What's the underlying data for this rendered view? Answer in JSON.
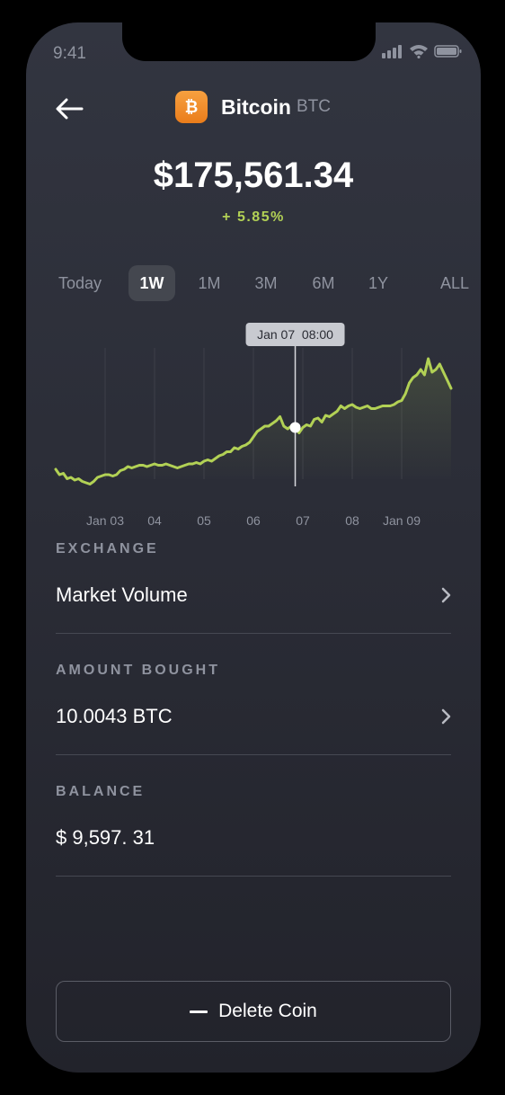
{
  "status_bar": {
    "time": "9:41"
  },
  "header": {
    "coin_name": "Bitcoin",
    "coin_symbol": "BTC"
  },
  "price": "$175,561.34",
  "change": "+ 5.85%",
  "ranges": [
    "Today",
    "1W",
    "1M",
    "3M",
    "6M",
    "1Y",
    "ALL"
  ],
  "active_range": "1W",
  "colors": {
    "accent": "#b2d155",
    "coin": "#f39131"
  },
  "chart_data": {
    "type": "line",
    "title": "",
    "xlabel": "",
    "ylabel": "",
    "tick_labels": [
      "Jan 03",
      "04",
      "05",
      "06",
      "07",
      "08",
      "Jan 09"
    ],
    "tooltip": "Jan 07  08:00",
    "y_axis_visible": false,
    "grid": "vertical",
    "series": [
      {
        "values": [
          0.14,
          0.1,
          0.11,
          0.07,
          0.08,
          0.06,
          0.07,
          0.05,
          0.04,
          0.03,
          0.05,
          0.08,
          0.09,
          0.1,
          0.1,
          0.09,
          0.1,
          0.13,
          0.14,
          0.16,
          0.15,
          0.16,
          0.17,
          0.17,
          0.16,
          0.17,
          0.18,
          0.17,
          0.17,
          0.18,
          0.17,
          0.16,
          0.15,
          0.16,
          0.17,
          0.18,
          0.18,
          0.19,
          0.18,
          0.2,
          0.21,
          0.2,
          0.22,
          0.24,
          0.25,
          0.27,
          0.27,
          0.3,
          0.29,
          0.31,
          0.32,
          0.34,
          0.38,
          0.42,
          0.44,
          0.46,
          0.46,
          0.48,
          0.5,
          0.53,
          0.46,
          0.44,
          0.46,
          0.45,
          0.41,
          0.45,
          0.47,
          0.46,
          0.51,
          0.52,
          0.49,
          0.54,
          0.53,
          0.55,
          0.57,
          0.61,
          0.59,
          0.61,
          0.62,
          0.6,
          0.59,
          0.6,
          0.61,
          0.59,
          0.59,
          0.6,
          0.61,
          0.61,
          0.61,
          0.62,
          0.64,
          0.65,
          0.7,
          0.78,
          0.82,
          0.84,
          0.88,
          0.84,
          0.96,
          0.86,
          0.88,
          0.92,
          0.86,
          0.8,
          0.74
        ],
        "highlight_index": 63
      }
    ]
  },
  "sections": {
    "exchange_label": "EXCHANGE",
    "exchange_value": "Market Volume",
    "amount_label": "AMOUNT BOUGHT",
    "amount_value": "10.0043 BTC",
    "balance_label": "BALANCE",
    "balance_value": "$ 9,597. 31"
  },
  "delete_button": {
    "label": "Delete Coin"
  },
  "icons": [
    "back-arrow-icon",
    "bitcoin-icon",
    "chevron-right-icon",
    "signal-icon",
    "wifi-icon",
    "battery-icon",
    "minus-icon"
  ]
}
